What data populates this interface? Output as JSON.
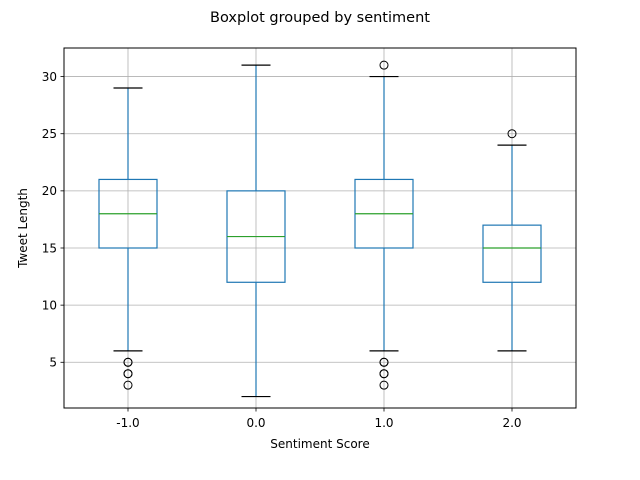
{
  "chart_data": {
    "type": "boxplot",
    "title": "Boxplot grouped by sentiment",
    "xlabel": "Sentiment Score",
    "ylabel": "Tweet Length",
    "categories": [
      "-1.0",
      "0.0",
      "1.0",
      "2.0"
    ],
    "ylim": [
      1,
      32.5
    ],
    "yticks": [
      5,
      10,
      15,
      20,
      25,
      30
    ],
    "grid": true,
    "legend": "none",
    "colors": {
      "box": "#1f77b4",
      "median": "#2ca02c",
      "cap": "#000000",
      "grid": "#b0b0b0",
      "flier": "#000000"
    },
    "boxes": [
      {
        "category": "-1.0",
        "whisker_low": 6,
        "q1": 15,
        "median": 18,
        "q3": 21,
        "whisker_high": 29,
        "fliers": [
          5,
          5,
          4,
          4,
          3
        ]
      },
      {
        "category": "0.0",
        "whisker_low": 2,
        "q1": 12,
        "median": 16,
        "q3": 20,
        "whisker_high": 31,
        "fliers": []
      },
      {
        "category": "1.0",
        "whisker_low": 6,
        "q1": 15,
        "median": 18,
        "q3": 21,
        "whisker_high": 30,
        "fliers": [
          31,
          5,
          5,
          4,
          4,
          3
        ]
      },
      {
        "category": "2.0",
        "whisker_low": 6,
        "q1": 12,
        "median": 15,
        "q3": 17,
        "whisker_high": 24,
        "fliers": [
          25
        ]
      }
    ]
  }
}
